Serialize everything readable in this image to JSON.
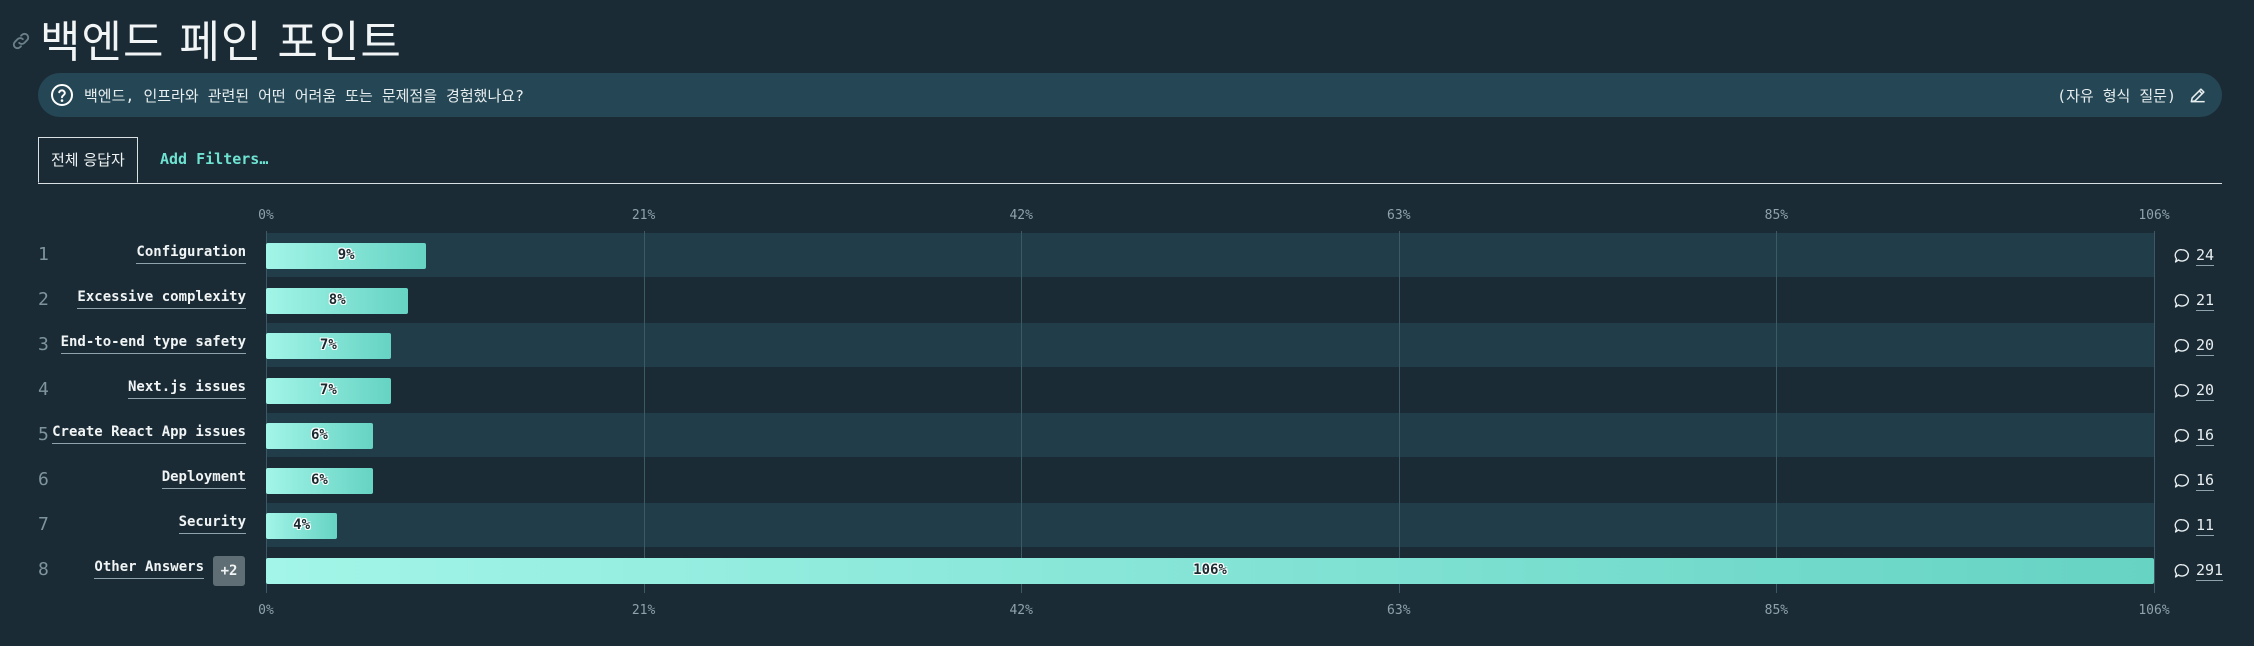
{
  "page": {
    "title": "백엔드 페인 포인트",
    "question": "백엔드, 인프라와 관련된 어떤 어려움 또는 문제점을 경험했나요?",
    "question_type": "(자유 형식 질문)"
  },
  "tabs": {
    "active": "전체 응답자",
    "add_filters": "Add Filters…"
  },
  "chart_data": {
    "type": "bar",
    "orientation": "horizontal",
    "x_ticks": [
      "0%",
      "21%",
      "42%",
      "63%",
      "85%",
      "106%"
    ],
    "xlim": [
      0,
      106
    ],
    "grid": true,
    "rows": [
      {
        "rank": "1",
        "label": "Configuration",
        "value": 9,
        "value_label": "9%",
        "count": "24"
      },
      {
        "rank": "2",
        "label": "Excessive complexity",
        "value": 8,
        "value_label": "8%",
        "count": "21"
      },
      {
        "rank": "3",
        "label": "End-to-end type safety",
        "value": 7,
        "value_label": "7%",
        "count": "20"
      },
      {
        "rank": "4",
        "label": "Next.js issues",
        "value": 7,
        "value_label": "7%",
        "count": "20"
      },
      {
        "rank": "5",
        "label": "Create React App issues",
        "value": 6,
        "value_label": "6%",
        "count": "16"
      },
      {
        "rank": "6",
        "label": "Deployment",
        "value": 6,
        "value_label": "6%",
        "count": "16"
      },
      {
        "rank": "7",
        "label": "Security",
        "value": 4,
        "value_label": "4%",
        "count": "11"
      },
      {
        "rank": "8",
        "label": "Other Answers",
        "badge": "+2",
        "value": 106,
        "value_label": "106%",
        "count": "291"
      }
    ]
  }
}
